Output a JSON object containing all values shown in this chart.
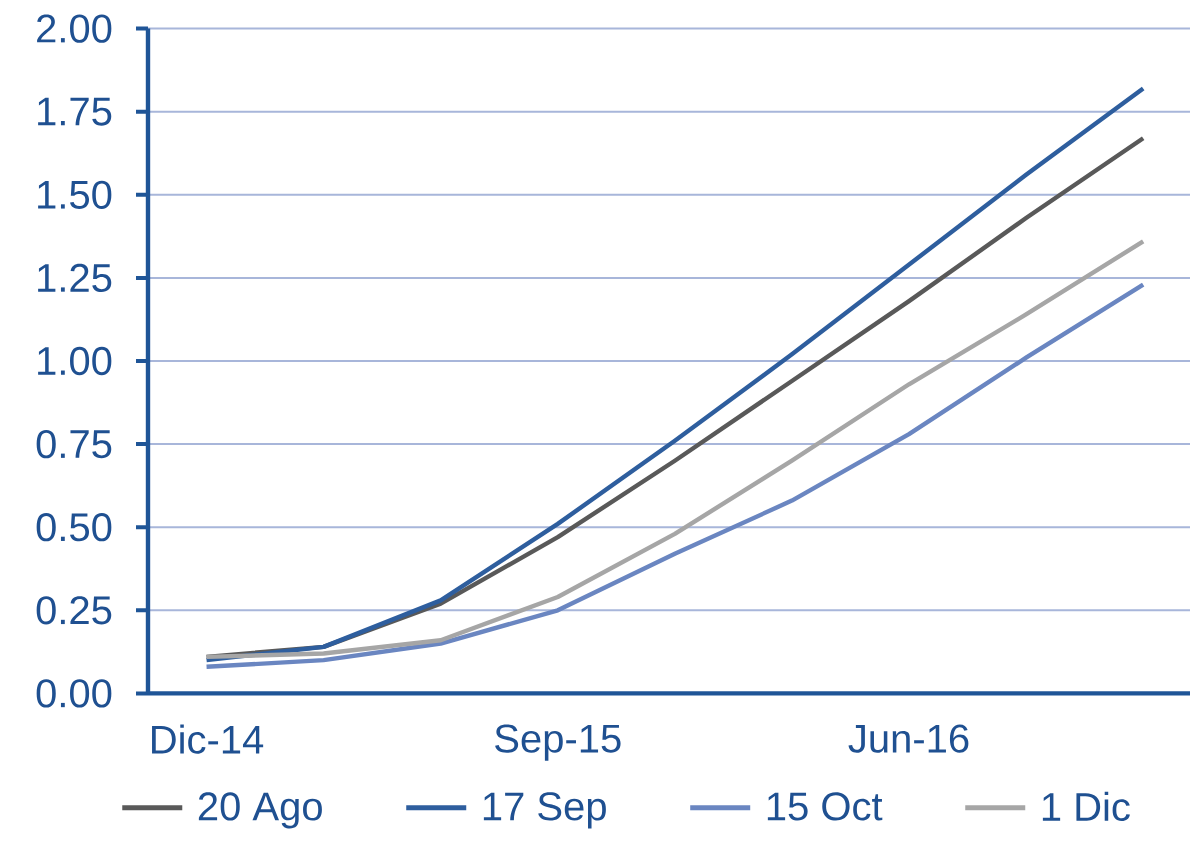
{
  "chart_data": {
    "type": "line",
    "categories": [
      "Dic-14",
      null,
      null,
      "Sep-15",
      null,
      null,
      "Jun-16",
      null,
      null
    ],
    "series": [
      {
        "name": "20 Ago",
        "color": "#595959",
        "values": [
          0.11,
          0.14,
          0.27,
          0.47,
          0.7,
          0.94,
          1.18,
          1.43,
          1.67
        ]
      },
      {
        "name": "17 Sep",
        "color": "#2e5e9e",
        "values": [
          0.1,
          0.14,
          0.28,
          0.51,
          0.76,
          1.02,
          1.29,
          1.56,
          1.82
        ]
      },
      {
        "name": "15 Oct",
        "color": "#6a86c1",
        "values": [
          0.08,
          0.1,
          0.15,
          0.25,
          0.42,
          0.58,
          0.78,
          1.01,
          1.23
        ]
      },
      {
        "name": "1 Dic",
        "color": "#a6a6a6",
        "values": [
          0.11,
          0.12,
          0.16,
          0.29,
          0.48,
          0.7,
          0.93,
          1.14,
          1.36
        ]
      }
    ],
    "ylim": [
      0,
      2
    ],
    "yticks": [
      {
        "value": 0,
        "label": "0.00"
      },
      {
        "value": 0.25,
        "label": "0.25"
      },
      {
        "value": 0.5,
        "label": "0.50"
      },
      {
        "value": 0.75,
        "label": "0.75"
      },
      {
        "value": 1,
        "label": "1.00"
      },
      {
        "value": 1.25,
        "label": "1.25"
      },
      {
        "value": 1.5,
        "label": "1.50"
      },
      {
        "value": 1.75,
        "label": "1.75"
      },
      {
        "value": 2,
        "label": "2.00"
      }
    ],
    "grid": "y",
    "legend": "bottom",
    "marker": "none",
    "line_style": "solid"
  }
}
